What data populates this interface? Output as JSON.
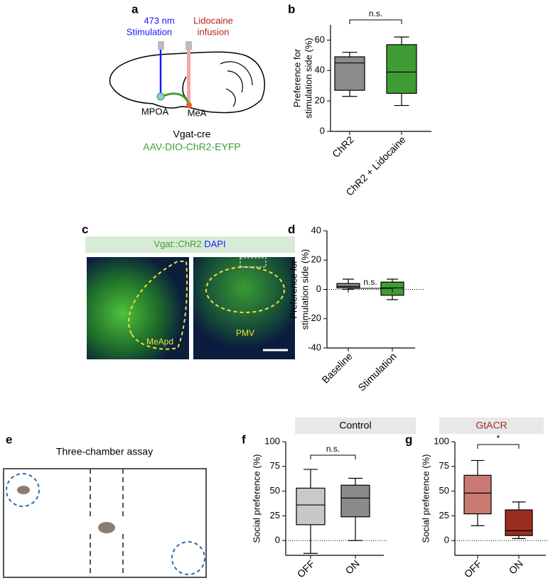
{
  "chart_data": [
    {
      "type": "box",
      "panel_label": "b",
      "ylabel": [
        "Preference for",
        "stimulation side (%)"
      ],
      "categories": [
        "ChR2",
        "ChR2 + Lidocaine"
      ],
      "boxes": [
        {
          "min": 23,
          "q1": 27,
          "median": 45,
          "q3": 49,
          "max": 52,
          "color": "#8c8c8c"
        },
        {
          "min": 17,
          "q1": 25,
          "median": 39,
          "q3": 57,
          "max": 62,
          "color": "#3f9c35"
        }
      ],
      "ylim": [
        0,
        70
      ],
      "yticks": [
        0,
        20,
        40,
        60
      ],
      "annotation": "n.s.",
      "zero_line": false
    },
    {
      "type": "box",
      "panel_label": "d",
      "ylabel": [
        "Preference for",
        "stimulation side (%)"
      ],
      "categories": [
        "Baseline",
        "Stimulation"
      ],
      "boxes": [
        {
          "min": 0,
          "q1": 1,
          "median": 2,
          "q3": 4,
          "max": 7,
          "color": "#8c8c8c"
        },
        {
          "min": -7,
          "q1": -4,
          "median": 1,
          "q3": 5,
          "max": 7,
          "color": "#3f9c35"
        }
      ],
      "ylim": [
        -40,
        40
      ],
      "yticks": [
        -40,
        -20,
        0,
        20,
        40
      ],
      "annotation": "n.s.",
      "zero_line": true
    },
    {
      "type": "box",
      "panel_label": "f",
      "title": "Control",
      "title_color": "#000000",
      "ylabel": [
        "Social preference (%)"
      ],
      "categories": [
        "OFF",
        "ON"
      ],
      "boxes": [
        {
          "min": -13,
          "q1": 16,
          "median": 36,
          "q3": 53,
          "max": 72,
          "color": "#c8c8c8"
        },
        {
          "min": 0,
          "q1": 24,
          "median": 43,
          "q3": 56,
          "max": 63,
          "color": "#8a8a8a"
        }
      ],
      "ylim": [
        -15,
        100
      ],
      "yticks": [
        0,
        25,
        50,
        75,
        100
      ],
      "annotation": "n.s.",
      "zero_line": true
    },
    {
      "type": "box",
      "panel_label": "g",
      "title": "GtACR",
      "title_color": "#9b2d1f",
      "ylabel": [
        "Social preference (%)"
      ],
      "categories": [
        "OFF",
        "ON"
      ],
      "boxes": [
        {
          "min": 15,
          "q1": 27,
          "median": 48,
          "q3": 66,
          "max": 81,
          "color": "#c97b73"
        },
        {
          "min": 2,
          "q1": 5,
          "median": 10,
          "q3": 31,
          "max": 39,
          "color": "#9b2d1f"
        }
      ],
      "ylim": [
        -15,
        100
      ],
      "yticks": [
        0,
        25,
        50,
        75,
        100
      ],
      "annotation": "*",
      "zero_line": true
    }
  ],
  "diagrams": {
    "a": {
      "panel_label": "a",
      "stim": [
        "473 nm",
        "Stimulation"
      ],
      "infusion": [
        "Lidocaine",
        "infusion"
      ],
      "regions": [
        "MPOA",
        "MeA"
      ],
      "mouse_line": "Vgat-cre",
      "virus": "AAV-DIO-ChR2-EYFP"
    },
    "c": {
      "panel_label": "c",
      "header": [
        "Vgat::ChR2",
        "DAPI"
      ],
      "regions": [
        "MeApd",
        "PMV"
      ]
    },
    "e": {
      "panel_label": "e",
      "title": "Three-chamber assay"
    }
  }
}
